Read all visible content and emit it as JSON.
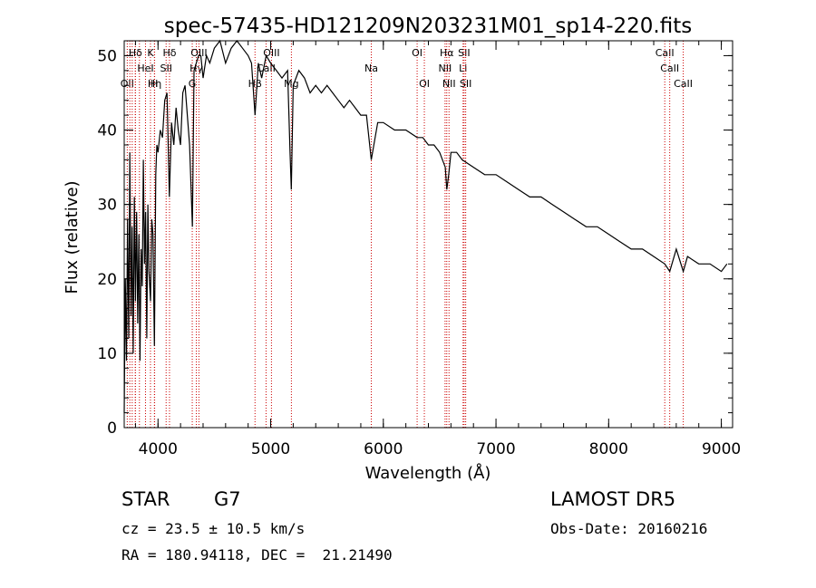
{
  "chart_data": {
    "type": "line",
    "title": "spec-57435-HD121209N203231M01_sp14-220.fits",
    "xlabel": "Wavelength (Å)",
    "ylabel": "Flux (relative)",
    "xlim": [
      3700,
      9100
    ],
    "ylim": [
      0,
      52
    ],
    "xticks": [
      4000,
      5000,
      6000,
      7000,
      8000,
      9000
    ],
    "yticks": [
      0,
      10,
      20,
      30,
      40,
      50
    ],
    "grid": false,
    "line_color": "#000000",
    "marker_color": "#cc0000",
    "series": [
      {
        "x": [
          3700,
          3710,
          3720,
          3730,
          3740,
          3750,
          3760,
          3770,
          3780,
          3790,
          3800,
          3810,
          3820,
          3830,
          3840,
          3850,
          3860,
          3870,
          3880,
          3890,
          3900,
          3910,
          3920,
          3933,
          3945,
          3955,
          3968,
          3980,
          3990,
          4000,
          4020,
          4040,
          4060,
          4080,
          4101,
          4120,
          4140,
          4160,
          4180,
          4200,
          4220,
          4240,
          4260,
          4280,
          4305,
          4320,
          4340,
          4360,
          4380,
          4400,
          4430,
          4460,
          4500,
          4550,
          4600,
          4650,
          4700,
          4750,
          4800,
          4830,
          4861,
          4890,
          4920,
          4960,
          5000,
          5050,
          5100,
          5150,
          5172,
          5183,
          5200,
          5250,
          5300,
          5350,
          5400,
          5450,
          5500,
          5550,
          5600,
          5650,
          5700,
          5750,
          5800,
          5850,
          5893,
          5950,
          6000,
          6100,
          6200,
          6300,
          6350,
          6400,
          6450,
          6500,
          6550,
          6563,
          6580,
          6600,
          6650,
          6700,
          6800,
          6900,
          7000,
          7100,
          7200,
          7300,
          7400,
          7500,
          7600,
          7700,
          7800,
          7900,
          8000,
          8100,
          8200,
          8300,
          8400,
          8498,
          8542,
          8600,
          8662,
          8700,
          8800,
          8900,
          9000,
          9050
        ],
        "values": [
          2,
          20,
          9,
          28,
          12,
          37,
          15,
          27,
          10,
          31,
          17,
          29,
          14,
          26,
          9,
          24,
          19,
          36,
          22,
          29,
          12,
          30,
          21,
          17,
          28,
          26,
          11,
          34,
          38,
          37,
          40,
          39,
          44,
          45,
          31,
          41,
          38,
          43,
          40,
          38,
          45,
          46,
          42,
          38,
          27,
          48,
          49,
          50,
          50,
          47,
          50,
          49,
          51,
          52,
          49,
          51,
          52,
          51,
          50,
          49,
          42,
          49,
          47,
          50,
          49,
          48,
          47,
          48,
          37,
          32,
          46,
          48,
          47,
          45,
          46,
          45,
          46,
          45,
          44,
          43,
          44,
          43,
          42,
          42,
          36,
          41,
          41,
          40,
          40,
          39,
          39,
          38,
          38,
          37,
          35,
          32,
          34,
          37,
          37,
          36,
          35,
          34,
          34,
          33,
          32,
          31,
          31,
          30,
          29,
          28,
          27,
          27,
          26,
          25,
          24,
          24,
          23,
          22,
          21,
          24,
          21,
          23,
          22,
          22,
          21,
          22
        ]
      }
    ],
    "lines": [
      {
        "wl": 3727,
        "label": "OII",
        "row": 3
      },
      {
        "wl": 3750,
        "label": "",
        "row": 0
      },
      {
        "wl": 3771,
        "label": "",
        "row": 0
      },
      {
        "wl": 3798,
        "label": "",
        "row": 0
      },
      {
        "wl": 3835,
        "label": "",
        "row": 0
      },
      {
        "wl": 3889,
        "label": "",
        "row": 0
      },
      {
        "wl": 3970,
        "label": "Hη",
        "row": 3
      },
      {
        "wl": 3933,
        "label": "K",
        "row": 1
      },
      {
        "wl": 3968,
        "label": "H",
        "row": 3
      },
      {
        "wl": 3889,
        "label": "HeI",
        "row": 2
      },
      {
        "wl": 4072,
        "label": "SII",
        "row": 2
      },
      {
        "wl": 4102,
        "label": "Hδ",
        "row": 1
      },
      {
        "wl": 3800,
        "label": "Hδ",
        "row": 1
      },
      {
        "wl": 4304,
        "label": "G",
        "row": 3
      },
      {
        "wl": 4340,
        "label": "Hγ",
        "row": 2
      },
      {
        "wl": 4363,
        "label": "OIII",
        "row": 1
      },
      {
        "wl": 4861,
        "label": "Hβ",
        "row": 3
      },
      {
        "wl": 4959,
        "label": "CaII",
        "row": 2
      },
      {
        "wl": 5007,
        "label": "OIII",
        "row": 1
      },
      {
        "wl": 5184,
        "label": "Mg",
        "row": 3
      },
      {
        "wl": 5893,
        "label": "Na",
        "row": 2
      },
      {
        "wl": 6300,
        "label": "OI",
        "row": 1
      },
      {
        "wl": 6364,
        "label": "OI",
        "row": 3
      },
      {
        "wl": 6548,
        "label": "NII",
        "row": 2
      },
      {
        "wl": 6563,
        "label": "Hα",
        "row": 1
      },
      {
        "wl": 6583,
        "label": "NII",
        "row": 3
      },
      {
        "wl": 6708,
        "label": "Li",
        "row": 2
      },
      {
        "wl": 6717,
        "label": "SII",
        "row": 1
      },
      {
        "wl": 6731,
        "label": "SII",
        "row": 3
      },
      {
        "wl": 8498,
        "label": "CaII",
        "row": 1
      },
      {
        "wl": 8542,
        "label": "CaII",
        "row": 2
      },
      {
        "wl": 8662,
        "label": "CaII",
        "row": 3
      }
    ]
  },
  "info": {
    "object_type": "STAR",
    "subclass": "G7",
    "survey": "LAMOST DR5",
    "cz": "cz = 23.5 ± 10.5 km/s",
    "obs_date": "Obs-Date: 20160216",
    "coords": "RA = 180.94118, DEC =  21.21490"
  }
}
